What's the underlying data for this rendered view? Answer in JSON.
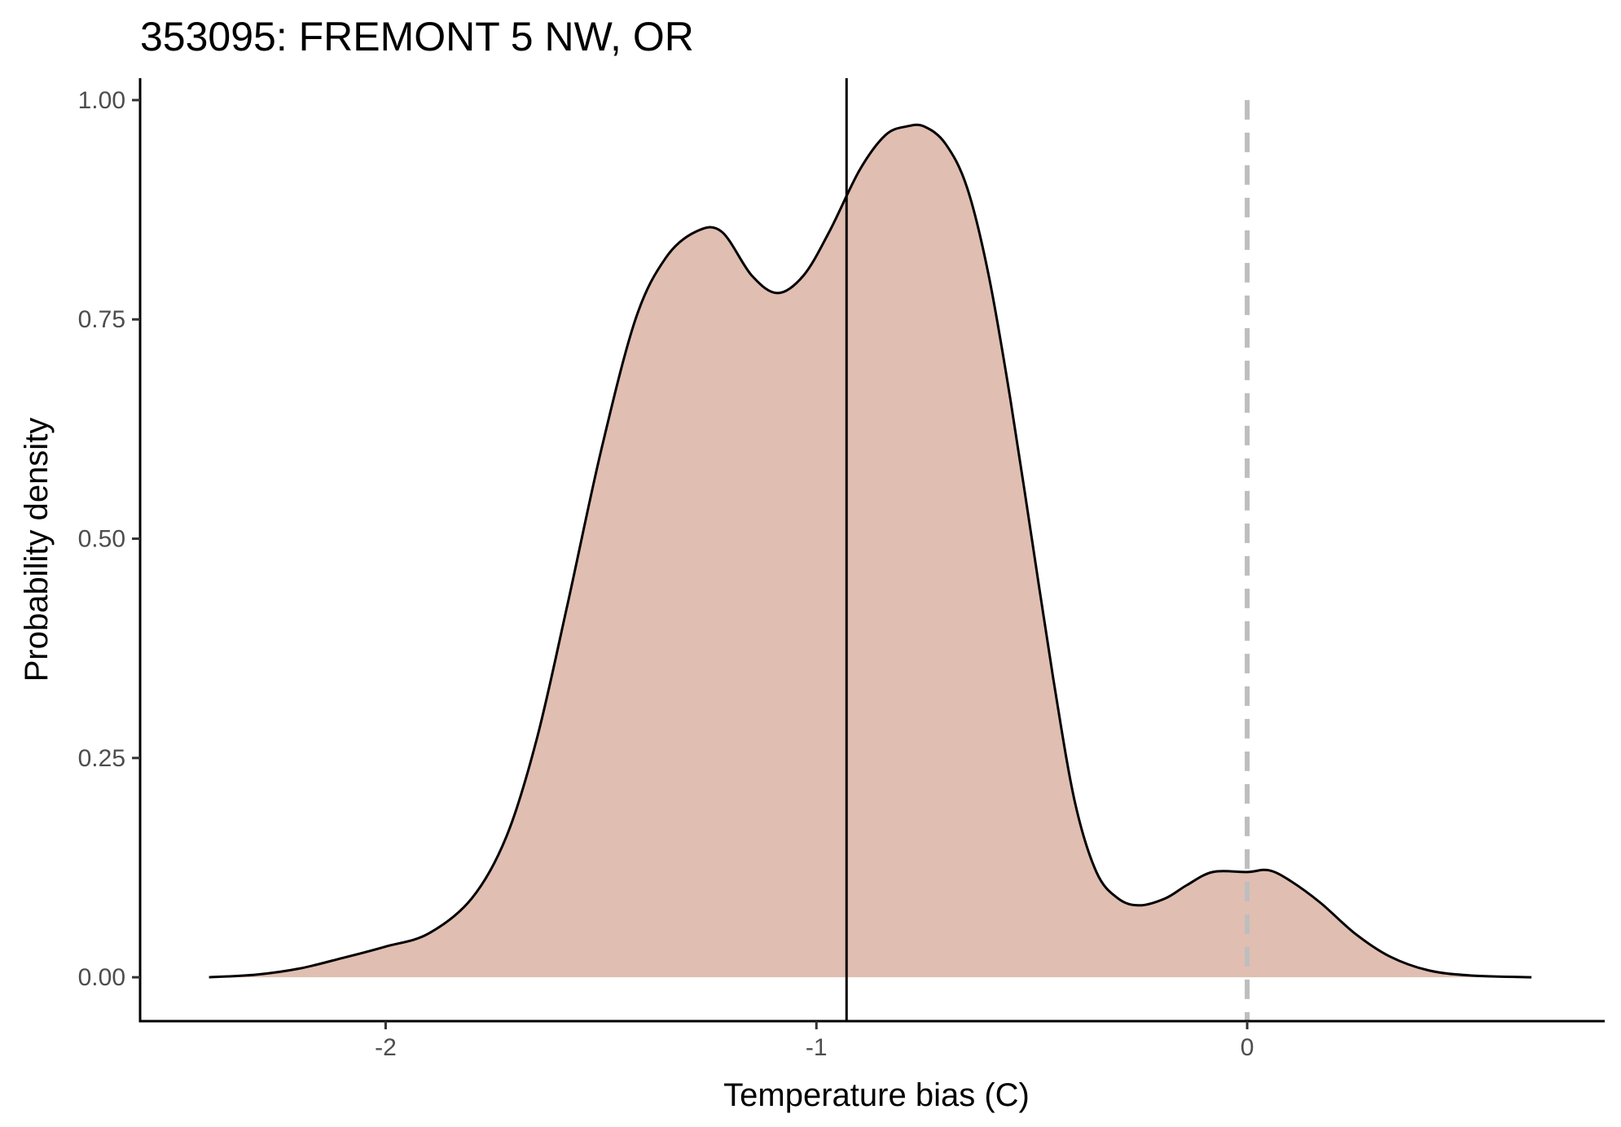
{
  "chart_data": {
    "type": "area",
    "title": "353095: FREMONT 5 NW, OR",
    "xlabel": "Temperature bias (C)",
    "ylabel": "Probability density",
    "xlim": [
      -2.57,
      0.83
    ],
    "ylim": [
      -0.05,
      1.025
    ],
    "x_ticks": [
      {
        "value": -2,
        "label": "-2"
      },
      {
        "value": -1,
        "label": "-1"
      },
      {
        "value": 0,
        "label": "0"
      }
    ],
    "y_ticks": [
      {
        "value": 0.0,
        "label": "0.00"
      },
      {
        "value": 0.25,
        "label": "0.25"
      },
      {
        "value": 0.5,
        "label": "0.50"
      },
      {
        "value": 0.75,
        "label": "0.75"
      },
      {
        "value": 1.0,
        "label": "1.00"
      }
    ],
    "density": {
      "fill": "#e1beb2",
      "stroke": "#000000",
      "x": [
        -2.41,
        -2.3,
        -2.2,
        -2.1,
        -2.0,
        -1.9,
        -1.8,
        -1.72,
        -1.65,
        -1.58,
        -1.5,
        -1.42,
        -1.35,
        -1.28,
        -1.22,
        -1.15,
        -1.09,
        -1.03,
        -0.97,
        -0.9,
        -0.84,
        -0.79,
        -0.75,
        -0.7,
        -0.65,
        -0.6,
        -0.55,
        -0.5,
        -0.45,
        -0.4,
        -0.35,
        -0.3,
        -0.25,
        -0.19,
        -0.14,
        -0.08,
        0.0,
        0.05,
        0.1,
        0.17,
        0.25,
        0.33,
        0.42,
        0.52,
        0.66
      ],
      "y": [
        0.0,
        0.003,
        0.01,
        0.022,
        0.035,
        0.05,
        0.09,
        0.16,
        0.27,
        0.42,
        0.6,
        0.75,
        0.82,
        0.85,
        0.85,
        0.8,
        0.78,
        0.8,
        0.85,
        0.92,
        0.96,
        0.97,
        0.97,
        0.95,
        0.9,
        0.8,
        0.66,
        0.5,
        0.34,
        0.2,
        0.12,
        0.09,
        0.082,
        0.09,
        0.105,
        0.12,
        0.12,
        0.122,
        0.11,
        0.085,
        0.05,
        0.024,
        0.008,
        0.002,
        0.0
      ]
    },
    "reference_lines": [
      {
        "x": -0.93,
        "style": "solid",
        "color": "#000000"
      },
      {
        "x": 0.0,
        "style": "dashed",
        "color": "#bebebe"
      }
    ]
  }
}
